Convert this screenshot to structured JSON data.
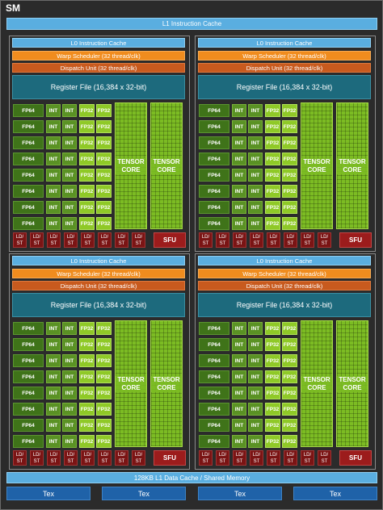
{
  "title": "SM",
  "l1_instruction_cache": "L1 Instruction Cache",
  "partition": {
    "l0_cache": "L0 Instruction Cache",
    "warp_scheduler": "Warp Scheduler (32 thread/clk)",
    "dispatch_unit": "Dispatch Unit (32 thread/clk)",
    "register_file": "Register File (16,384 x 32-bit)",
    "fp64": "FP64",
    "int": "INT",
    "fp32": "FP32",
    "tensor_core_line1": "TENSOR",
    "tensor_core_line2": "CORE",
    "ld_st": "LD/\nST",
    "sfu": "SFU"
  },
  "data_cache": "128KB L1 Data Cache / Shared Memory",
  "tex": [
    "Tex",
    "Tex",
    "Tex",
    "Tex"
  ],
  "colors": {
    "background": "#2b2b2b",
    "cache_blue": "#5aaee0",
    "warp_orange": "#f08c1e",
    "dispatch_orange": "#c85a1e",
    "register_teal": "#1d6a7d",
    "fp64_green": "#3f7319",
    "int_green": "#5a9224",
    "fp32_green": "#8fc927",
    "tensor_green": "#7cbc23",
    "ldst_red": "#7a1414",
    "sfu_red": "#9c1c1c",
    "tex_blue": "#1f62a8"
  }
}
